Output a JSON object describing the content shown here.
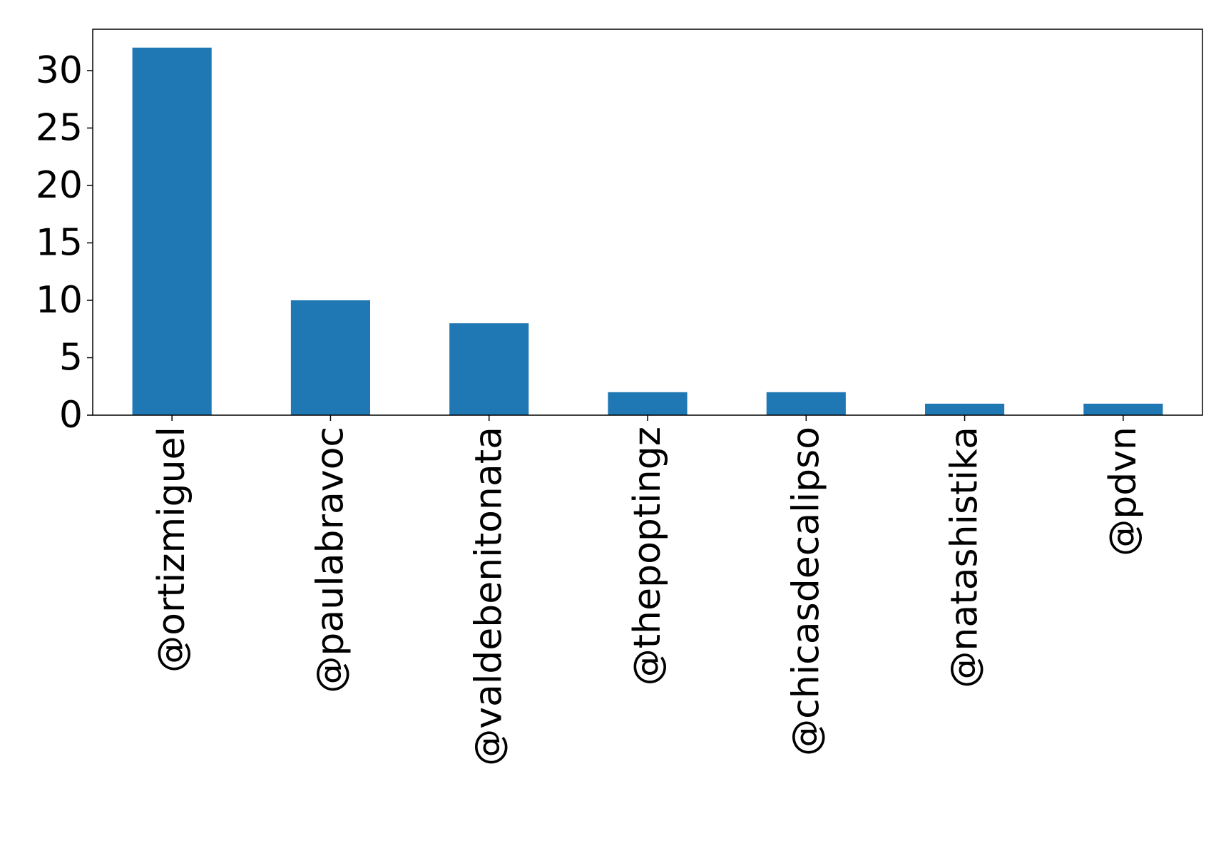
{
  "chart_data": {
    "type": "bar",
    "title": "",
    "xlabel": "",
    "ylabel": "",
    "categories": [
      "@ortizmiguel",
      "@paulabravoc",
      "@valdebenitonata",
      "@thepoptingz",
      "@chicasdecalipso",
      "@natashistika",
      "@pdvn"
    ],
    "values": [
      32,
      10,
      8,
      2,
      2,
      1,
      1
    ],
    "ylim": [
      0,
      33.6
    ],
    "yticks": [
      0,
      5,
      10,
      15,
      20,
      25,
      30
    ],
    "grid": false,
    "legend": "none",
    "colors": {
      "bar": "#1f77b4",
      "axis": "#000000",
      "background": "#ffffff"
    }
  }
}
